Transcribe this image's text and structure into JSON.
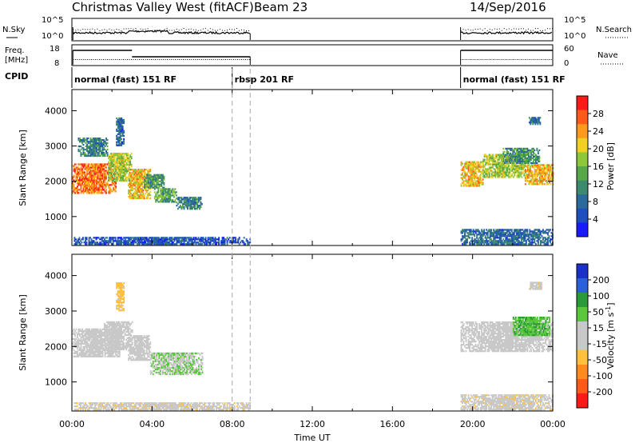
{
  "header": {
    "title": "Christmas Valley West (fitACF)",
    "beam": "Beam 23",
    "date": "14/Sep/2016"
  },
  "top_panels": {
    "nsky_label": "N.Sky",
    "nsearch_label": "N.Search",
    "freq_label_1": "Freq.",
    "freq_label_2": "[MHz]",
    "nave_label": "Nave",
    "cpid_label": "CPID",
    "noise_left_ticks": [
      "10^5",
      "10^0"
    ],
    "noise_right_ticks": [
      "10^5",
      "10^0"
    ],
    "freq_left_ticks": [
      "18",
      "8"
    ],
    "freq_right_ticks": [
      "60",
      "0"
    ]
  },
  "cpid_segments": [
    {
      "label": "normal (fast) 151 RF",
      "start": 0.0,
      "end": 8.0
    },
    {
      "label": "rbsp 201 RF",
      "start": 8.0,
      "end": 8.9
    },
    {
      "label": "normal (fast) 151 RF",
      "start": 19.4,
      "end": 24.0
    }
  ],
  "chart_data": [
    {
      "type": "heatmap",
      "name_id": "power",
      "xlabel": "",
      "ylabel": "Slant Range [km]",
      "xlim": [
        0,
        24
      ],
      "ylim": [
        180,
        4600
      ],
      "y_ticks": [
        1000,
        2000,
        3000,
        4000
      ],
      "y_tick_labels": [
        "1000",
        "2000",
        "3000",
        "4000"
      ],
      "colorbar_label": "Power [dB]",
      "colorbar_range": [
        0,
        32
      ],
      "colorbar_ticks": [
        "4",
        "8",
        "12",
        "16",
        "20",
        "24",
        "28"
      ],
      "colors": [
        "#1a1aff",
        "#1f4fbf",
        "#2b6a9a",
        "#3e8a6e",
        "#58a84a",
        "#8ec83a",
        "#f0d020",
        "#ff9a1e",
        "#ff5a18",
        "#ff1a1a"
      ],
      "bands": [
        {
          "t0": 0.0,
          "t1": 2.2,
          "r0": 1650,
          "r1": 2500,
          "v": 26
        },
        {
          "t0": 0.3,
          "t1": 1.8,
          "r0": 2700,
          "r1": 3200,
          "v": 10
        },
        {
          "t0": 1.8,
          "t1": 3.0,
          "r0": 2000,
          "r1": 2800,
          "v": 18
        },
        {
          "t0": 2.2,
          "t1": 2.6,
          "r0": 3000,
          "r1": 3800,
          "v": 8
        },
        {
          "t0": 2.8,
          "t1": 3.9,
          "r0": 1500,
          "r1": 2350,
          "v": 22
        },
        {
          "t0": 3.6,
          "t1": 4.6,
          "r0": 1800,
          "r1": 2200,
          "v": 12
        },
        {
          "t0": 4.1,
          "t1": 5.2,
          "r0": 1400,
          "r1": 1800,
          "v": 14
        },
        {
          "t0": 5.2,
          "t1": 6.5,
          "r0": 1200,
          "r1": 1550,
          "v": 10
        },
        {
          "t0": 0.1,
          "t1": 8.9,
          "r0": 200,
          "r1": 420,
          "v": 6
        },
        {
          "t0": 19.4,
          "t1": 20.5,
          "r0": 1850,
          "r1": 2550,
          "v": 22
        },
        {
          "t0": 20.5,
          "t1": 22.6,
          "r0": 2100,
          "r1": 2750,
          "v": 18
        },
        {
          "t0": 22.6,
          "t1": 24.0,
          "r0": 1900,
          "r1": 2450,
          "v": 22
        },
        {
          "t0": 21.5,
          "t1": 23.3,
          "r0": 2500,
          "r1": 2950,
          "v": 12
        },
        {
          "t0": 22.8,
          "t1": 23.4,
          "r0": 3600,
          "r1": 3800,
          "v": 8
        },
        {
          "t0": 19.4,
          "t1": 24.0,
          "r0": 200,
          "r1": 650,
          "v": 8
        }
      ]
    },
    {
      "type": "heatmap",
      "name_id": "velocity",
      "xlabel": "Time UT",
      "ylabel": "Slant Range [km]",
      "xlim": [
        0,
        24
      ],
      "ylim": [
        180,
        4600
      ],
      "x_ticks": [
        0,
        4,
        8,
        12,
        16,
        20,
        24
      ],
      "x_tick_labels": [
        "00:00",
        "04:00",
        "08:00",
        "12:00",
        "16:00",
        "20:00",
        "00:00"
      ],
      "y_ticks": [
        1000,
        2000,
        3000,
        4000
      ],
      "y_tick_labels": [
        "1000",
        "2000",
        "3000",
        "4000"
      ],
      "colorbar_label": "Velocity [m s^-1]",
      "colorbar_ticks": [
        "200",
        "100",
        "50",
        "15",
        "-15",
        "-50",
        "-100",
        "-200"
      ],
      "colors": [
        "#1a30c8",
        "#2a60d8",
        "#2a9a3a",
        "#5ac83a",
        "#c8c8c8",
        "#c8c8c8",
        "#ffc040",
        "#ff8a20",
        "#ff5a18",
        "#ff1a1a"
      ],
      "bands": [
        {
          "t0": 0.0,
          "t1": 2.4,
          "r0": 1700,
          "r1": 2500,
          "v": 0
        },
        {
          "t0": 1.6,
          "t1": 3.0,
          "r0": 1900,
          "r1": 2700,
          "v": 5
        },
        {
          "t0": 2.2,
          "t1": 2.6,
          "r0": 3000,
          "r1": 3800,
          "v": -60
        },
        {
          "t0": 2.8,
          "t1": 3.9,
          "r0": 1600,
          "r1": 2300,
          "v": 0
        },
        {
          "t0": 3.9,
          "t1": 6.5,
          "r0": 1200,
          "r1": 1800,
          "v": 40
        },
        {
          "t0": 0.1,
          "t1": 8.9,
          "r0": 200,
          "r1": 420,
          "v": -30
        },
        {
          "t0": 19.4,
          "t1": 24.0,
          "r0": 1850,
          "r1": 2700,
          "v": 0
        },
        {
          "t0": 22.0,
          "t1": 23.8,
          "r0": 2300,
          "r1": 2800,
          "v": 80
        },
        {
          "t0": 22.8,
          "t1": 23.4,
          "r0": 3600,
          "r1": 3800,
          "v": -30
        },
        {
          "t0": 19.4,
          "t1": 24.0,
          "r0": 200,
          "r1": 650,
          "v": -30
        }
      ]
    }
  ]
}
